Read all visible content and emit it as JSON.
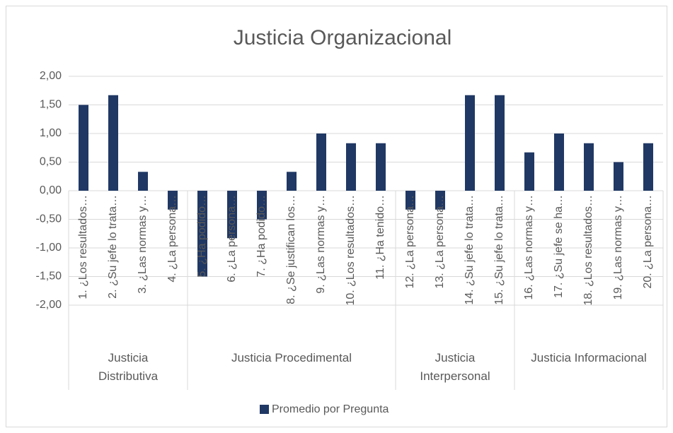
{
  "chart_data": {
    "type": "bar",
    "title": "Justicia Organizacional",
    "groups": [
      {
        "label": "Justicia Distributiva",
        "categories": [
          "1. ¿Los resultados…",
          "2. ¿Su jefe lo trata…",
          "3. ¿Las normas y…",
          "4. ¿La persona…"
        ]
      },
      {
        "label": "Justicia Procedimental",
        "categories": [
          "5. ¿Ha podido…",
          "6. ¿La persona…",
          "7. ¿Ha podido…",
          "8. ¿Se justifican los…",
          "9. ¿Las normas y…",
          "10. ¿Los resultados…",
          "11. ¿Ha tenido…"
        ]
      },
      {
        "label": "Justicia Interpersonal",
        "categories": [
          "12. ¿La persona…",
          "13. ¿La persona…",
          "14. ¿Su jefe lo trata…",
          "15. ¿Su jefe lo trata…"
        ]
      },
      {
        "label": "Justicia Informacional",
        "categories": [
          "16. ¿Las normas y…",
          "17. ¿Su jefe se ha…",
          "18. ¿Los resultados…",
          "19. ¿Las normas y…",
          "20. ¿La persona…"
        ]
      }
    ],
    "series": [
      {
        "name": "Promedio por Pregunta",
        "color": "#203864",
        "values": [
          1.5,
          1.67,
          0.33,
          -0.33,
          -1.5,
          -0.83,
          -0.5,
          0.33,
          1.0,
          0.83,
          0.83,
          -0.33,
          -0.33,
          1.67,
          1.67,
          0.67,
          1.0,
          0.83,
          0.5,
          0.83
        ]
      }
    ],
    "ylim": [
      -2,
      2
    ],
    "yticks": [
      {
        "value": 2,
        "label": "2,00"
      },
      {
        "value": 1.5,
        "label": "1,50"
      },
      {
        "value": 1,
        "label": "1,00"
      },
      {
        "value": 0.5,
        "label": "0,50"
      },
      {
        "value": 0,
        "label": "0,00"
      },
      {
        "value": -0.5,
        "label": "-0,50"
      },
      {
        "value": -1,
        "label": "-1,00"
      },
      {
        "value": -1.5,
        "label": "-1,50"
      },
      {
        "value": -2,
        "label": "-2,00"
      }
    ],
    "grid": true,
    "legend": "bottom"
  }
}
